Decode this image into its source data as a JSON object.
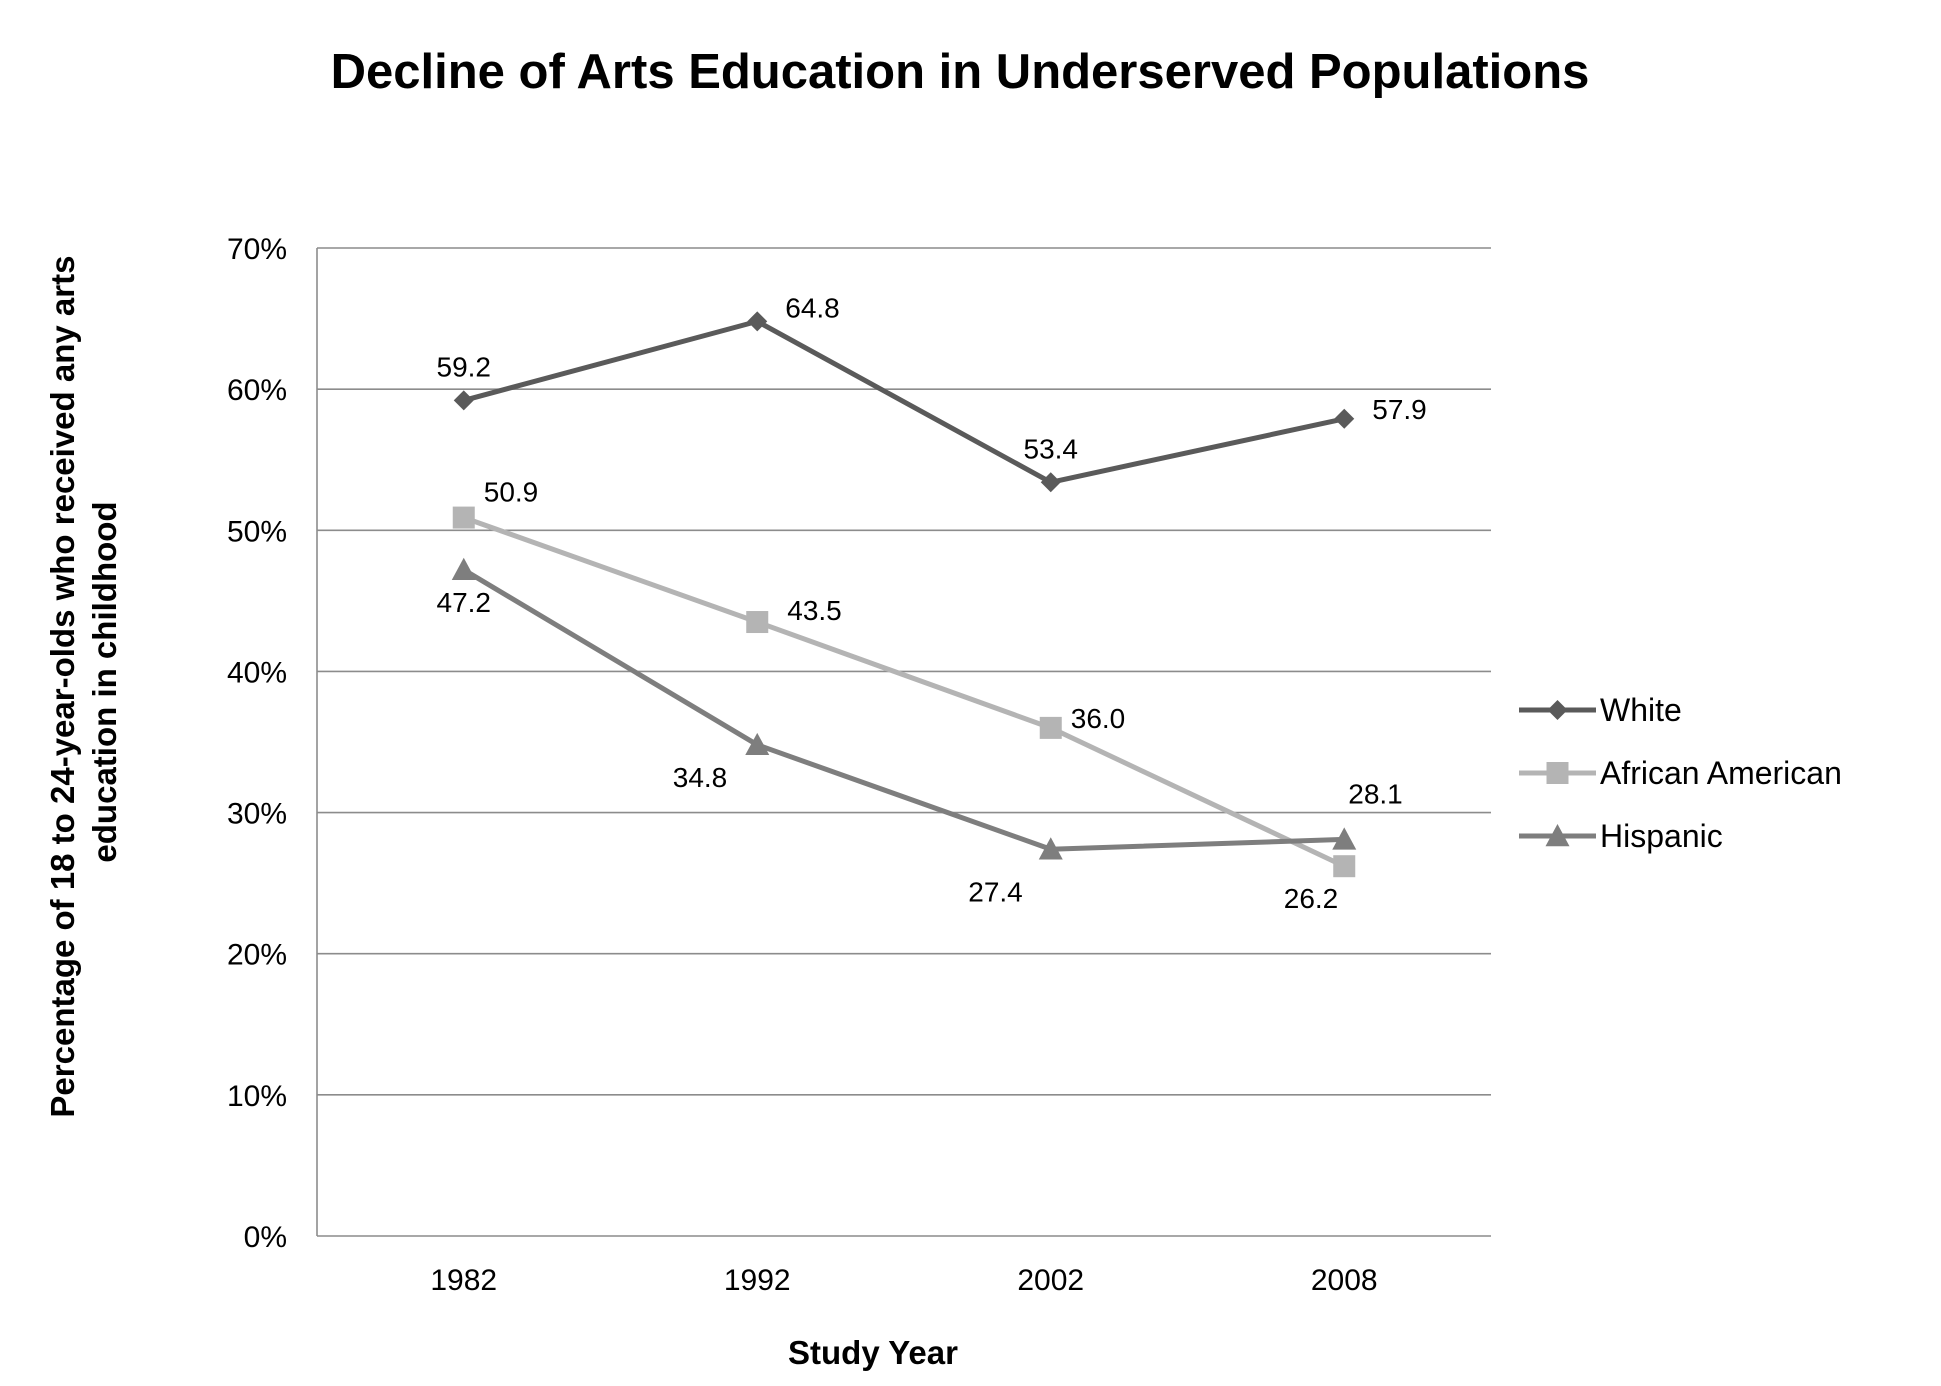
{
  "chart_data": {
    "type": "line",
    "title": "Decline of Arts Education in Underserved Populations",
    "xlabel": "Study Year",
    "ylabel": [
      "Percentage of 18 to 24-year-olds who received any arts",
      "education in childhood"
    ],
    "categories": [
      "1982",
      "1992",
      "2002",
      "2008"
    ],
    "ylim": [
      0,
      70
    ],
    "yticks": [
      0,
      10,
      20,
      30,
      40,
      50,
      60,
      70
    ],
    "ytick_format": "{v}%",
    "grid": "horizontal",
    "legend_position": "right",
    "series": [
      {
        "name": "White",
        "values": [
          59.2,
          64.8,
          53.4,
          57.9
        ],
        "labels": [
          "59.2",
          "64.8",
          "53.4",
          "57.9"
        ],
        "marker": "diamond",
        "color": "#5a5a5a"
      },
      {
        "name": "African American",
        "values": [
          50.9,
          43.5,
          36.0,
          26.2
        ],
        "labels": [
          "50.9",
          "43.5",
          "36.0",
          "26.2"
        ],
        "marker": "square",
        "color": "#b4b4b4"
      },
      {
        "name": "Hispanic",
        "values": [
          47.2,
          34.8,
          27.4,
          28.1
        ],
        "labels": [
          "47.2",
          "34.8",
          "27.4",
          "28.1"
        ],
        "marker": "triangle",
        "color": "#7e7e7e"
      }
    ]
  }
}
